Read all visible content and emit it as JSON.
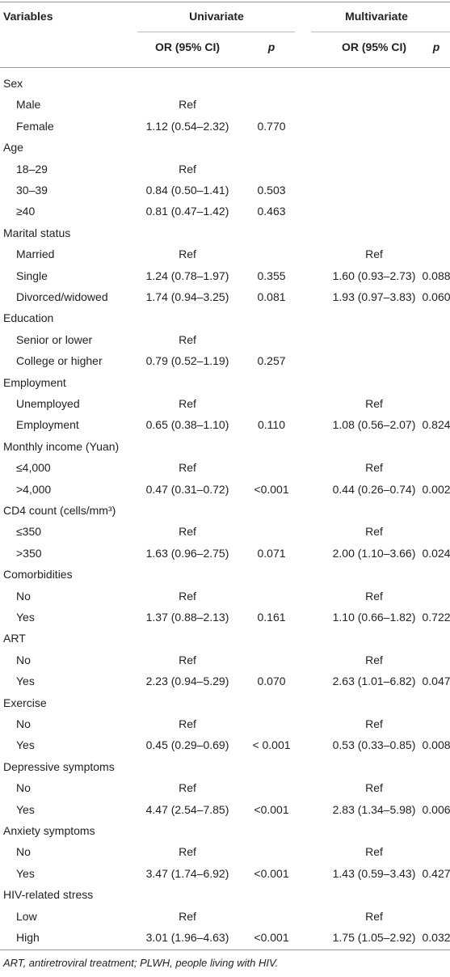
{
  "header": {
    "variables": "Variables",
    "univariate": "Univariate",
    "multivariate": "Multivariate",
    "or_ci_uni": "OR (95% CI)",
    "p_uni": "p",
    "or_ci_multi": "OR (95% CI)",
    "p_multi": "p"
  },
  "groups": [
    {
      "label": "Sex",
      "rows": [
        {
          "label": "Male",
          "uni_or": "Ref"
        },
        {
          "label": "Female",
          "uni_or": "1.12 (0.54–2.32)",
          "uni_p": "0.770"
        }
      ]
    },
    {
      "label": "Age",
      "rows": [
        {
          "label": "18–29",
          "uni_or": "Ref"
        },
        {
          "label": "30–39",
          "uni_or": "0.84 (0.50–1.41)",
          "uni_p": "0.503"
        },
        {
          "label": "≥40",
          "uni_or": "0.81 (0.47–1.42)",
          "uni_p": "0.463"
        }
      ]
    },
    {
      "label": "Marital status",
      "rows": [
        {
          "label": "Married",
          "uni_or": "Ref",
          "multi_or": "Ref"
        },
        {
          "label": "Single",
          "uni_or": "1.24 (0.78–1.97)",
          "uni_p": "0.355",
          "multi_or": "1.60 (0.93–2.73)",
          "multi_p": "0.088"
        },
        {
          "label": "Divorced/widowed",
          "uni_or": "1.74 (0.94–3.25)",
          "uni_p": "0.081",
          "multi_or": "1.93 (0.97–3.83)",
          "multi_p": "0.060"
        }
      ]
    },
    {
      "label": "Education",
      "rows": [
        {
          "label": "Senior or lower",
          "uni_or": "Ref"
        },
        {
          "label": "College or higher",
          "uni_or": "0.79 (0.52–1.19)",
          "uni_p": "0.257"
        }
      ]
    },
    {
      "label": "Employment",
      "rows": [
        {
          "label": "Unemployed",
          "uni_or": "Ref",
          "multi_or": "Ref"
        },
        {
          "label": "Employment",
          "uni_or": "0.65 (0.38–1.10)",
          "uni_p": "0.110",
          "multi_or": "1.08 (0.56–2.07)",
          "multi_p": "0.824"
        }
      ]
    },
    {
      "label": "Monthly income (Yuan)",
      "rows": [
        {
          "label": "≤4,000",
          "uni_or": "Ref",
          "multi_or": "Ref"
        },
        {
          "label": ">4,000",
          "uni_or": "0.47 (0.31–0.72)",
          "uni_p": "<0.001",
          "multi_or": "0.44 (0.26–0.74)",
          "multi_p": "0.002"
        }
      ]
    },
    {
      "label": "CD4 count (cells/mm³)",
      "rows": [
        {
          "label": "≤350",
          "uni_or": "Ref",
          "multi_or": "Ref"
        },
        {
          "label": ">350",
          "uni_or": "1.63 (0.96–2.75)",
          "uni_p": "0.071",
          "multi_or": "2.00 (1.10–3.66)",
          "multi_p": "0.024"
        }
      ]
    },
    {
      "label": "Comorbidities",
      "rows": [
        {
          "label": "No",
          "uni_or": "Ref",
          "multi_or": "Ref"
        },
        {
          "label": "Yes",
          "uni_or": "1.37 (0.88–2.13)",
          "uni_p": "0.161",
          "multi_or": "1.10 (0.66–1.82)",
          "multi_p": "0.722"
        }
      ]
    },
    {
      "label": "ART",
      "rows": [
        {
          "label": "No",
          "uni_or": "Ref",
          "multi_or": "Ref"
        },
        {
          "label": "Yes",
          "uni_or": "2.23 (0.94–5.29)",
          "uni_p": "0.070",
          "multi_or": "2.63 (1.01–6.82)",
          "multi_p": "0.047"
        }
      ]
    },
    {
      "label": "Exercise",
      "rows": [
        {
          "label": "No",
          "uni_or": "Ref",
          "multi_or": "Ref"
        },
        {
          "label": "Yes",
          "uni_or": "0.45 (0.29–0.69)",
          "uni_p": "< 0.001",
          "multi_or": "0.53 (0.33–0.85)",
          "multi_p": "0.008"
        }
      ]
    },
    {
      "label": "Depressive symptoms",
      "rows": [
        {
          "label": "No",
          "uni_or": "Ref",
          "multi_or": "Ref"
        },
        {
          "label": "Yes",
          "uni_or": "4.47 (2.54–7.85)",
          "uni_p": "<0.001",
          "multi_or": "2.83 (1.34–5.98)",
          "multi_p": "0.006"
        }
      ]
    },
    {
      "label": "Anxiety symptoms",
      "rows": [
        {
          "label": "No",
          "uni_or": "Ref",
          "multi_or": "Ref"
        },
        {
          "label": "Yes",
          "uni_or": "3.47 (1.74–6.92)",
          "uni_p": "<0.001",
          "multi_or": "1.43 (0.59–3.43)",
          "multi_p": "0.427"
        }
      ]
    },
    {
      "label": "HIV-related stress",
      "rows": [
        {
          "label": "Low",
          "uni_or": "Ref",
          "multi_or": "Ref"
        },
        {
          "label": "High",
          "uni_or": "3.01 (1.96–4.63)",
          "uni_p": "<0.001",
          "multi_or": "1.75 (1.05–2.92)",
          "multi_p": "0.032"
        }
      ]
    }
  ],
  "footnote": "ART, antiretroviral treatment; PLWH, people living with HIV."
}
